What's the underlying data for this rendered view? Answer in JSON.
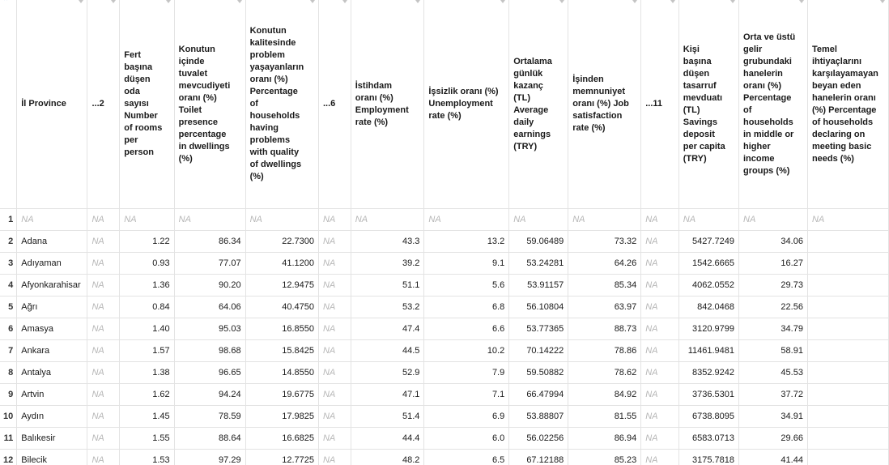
{
  "columns": [
    {
      "key": "rownum",
      "label": ""
    },
    {
      "key": "province",
      "label": "İl Province"
    },
    {
      "key": "c2",
      "label": "...2"
    },
    {
      "key": "rooms",
      "label": "Fert başına düşen oda sayısı Number of rooms per person"
    },
    {
      "key": "toilet",
      "label": "Konutun içinde tuvalet mevcudiyeti oranı (%) Toilet presence percentage in dwellings (%)"
    },
    {
      "key": "quality",
      "label": "Konutun kalitesinde problem yaşayanların oranı (%) Percentage of households having problems with quality of dwellings (%)"
    },
    {
      "key": "c6",
      "label": "...6"
    },
    {
      "key": "employment",
      "label": "İstihdam oranı (%) Employment rate (%)"
    },
    {
      "key": "unemployment",
      "label": "İşsizlik oranı (%) Unemployment rate (%)"
    },
    {
      "key": "earnings",
      "label": "Ortalama günlük kazanç (TL) Average daily earnings (TRY)"
    },
    {
      "key": "satisfaction",
      "label": "İşinden memnuniyet oranı (%) Job satisfaction rate (%)"
    },
    {
      "key": "c11",
      "label": "...11"
    },
    {
      "key": "savings",
      "label": "Kişi başına düşen tasarruf mevduatı (TL) Savings deposit per capita (TRY)"
    },
    {
      "key": "income",
      "label": "Orta ve üstü gelir grubundaki hanelerin oranı (%) Percentage of households in middle or higher income groups (%)"
    },
    {
      "key": "c14",
      "label": "Temel ihtiyaçlarını karşılayamayan beyan eden hanelerin oranı (%) Percentage of households declaring on meeting basic needs (%)"
    }
  ],
  "na_text": "NA",
  "rows": [
    [
      "1",
      "NA",
      "NA",
      "NA",
      "NA",
      "NA",
      "NA",
      "NA",
      "NA",
      "NA",
      "NA",
      "NA",
      "NA",
      "NA",
      "NA"
    ],
    [
      "2",
      "Adana",
      "NA",
      "1.22",
      "86.34",
      "22.7300",
      "NA",
      "43.3",
      "13.2",
      "59.06489",
      "73.32",
      "NA",
      "5427.7249",
      "34.06",
      ""
    ],
    [
      "3",
      "Adıyaman",
      "NA",
      "0.93",
      "77.07",
      "41.1200",
      "NA",
      "39.2",
      "9.1",
      "53.24281",
      "64.26",
      "NA",
      "1542.6665",
      "16.27",
      ""
    ],
    [
      "4",
      "Afyonkarahisar",
      "NA",
      "1.36",
      "90.20",
      "12.9475",
      "NA",
      "51.1",
      "5.6",
      "53.91157",
      "85.34",
      "NA",
      "4062.0552",
      "29.73",
      ""
    ],
    [
      "5",
      "Ağrı",
      "NA",
      "0.84",
      "64.06",
      "40.4750",
      "NA",
      "53.2",
      "6.8",
      "56.10804",
      "63.97",
      "NA",
      "842.0468",
      "22.56",
      ""
    ],
    [
      "6",
      "Amasya",
      "NA",
      "1.40",
      "95.03",
      "16.8550",
      "NA",
      "47.4",
      "6.6",
      "53.77365",
      "88.73",
      "NA",
      "3120.9799",
      "34.79",
      ""
    ],
    [
      "7",
      "Ankara",
      "NA",
      "1.57",
      "98.68",
      "15.8425",
      "NA",
      "44.5",
      "10.2",
      "70.14222",
      "78.86",
      "NA",
      "11461.9481",
      "58.91",
      ""
    ],
    [
      "8",
      "Antalya",
      "NA",
      "1.38",
      "96.65",
      "14.8550",
      "NA",
      "52.9",
      "7.9",
      "59.50882",
      "78.62",
      "NA",
      "8352.9242",
      "45.53",
      ""
    ],
    [
      "9",
      "Artvin",
      "NA",
      "1.62",
      "94.24",
      "19.6775",
      "NA",
      "47.1",
      "7.1",
      "66.47994",
      "84.92",
      "NA",
      "3736.5301",
      "37.72",
      ""
    ],
    [
      "10",
      "Aydın",
      "NA",
      "1.45",
      "78.59",
      "17.9825",
      "NA",
      "51.4",
      "6.9",
      "53.88807",
      "81.55",
      "NA",
      "6738.8095",
      "34.91",
      ""
    ],
    [
      "11",
      "Balıkesir",
      "NA",
      "1.55",
      "88.64",
      "16.6825",
      "NA",
      "44.4",
      "6.0",
      "56.02256",
      "86.94",
      "NA",
      "6583.0713",
      "29.66",
      ""
    ],
    [
      "12",
      "Bilecik",
      "NA",
      "1.53",
      "97.29",
      "12.7725",
      "NA",
      "48.2",
      "6.5",
      "67.12188",
      "85.23",
      "NA",
      "3175.7818",
      "41.44",
      ""
    ]
  ]
}
